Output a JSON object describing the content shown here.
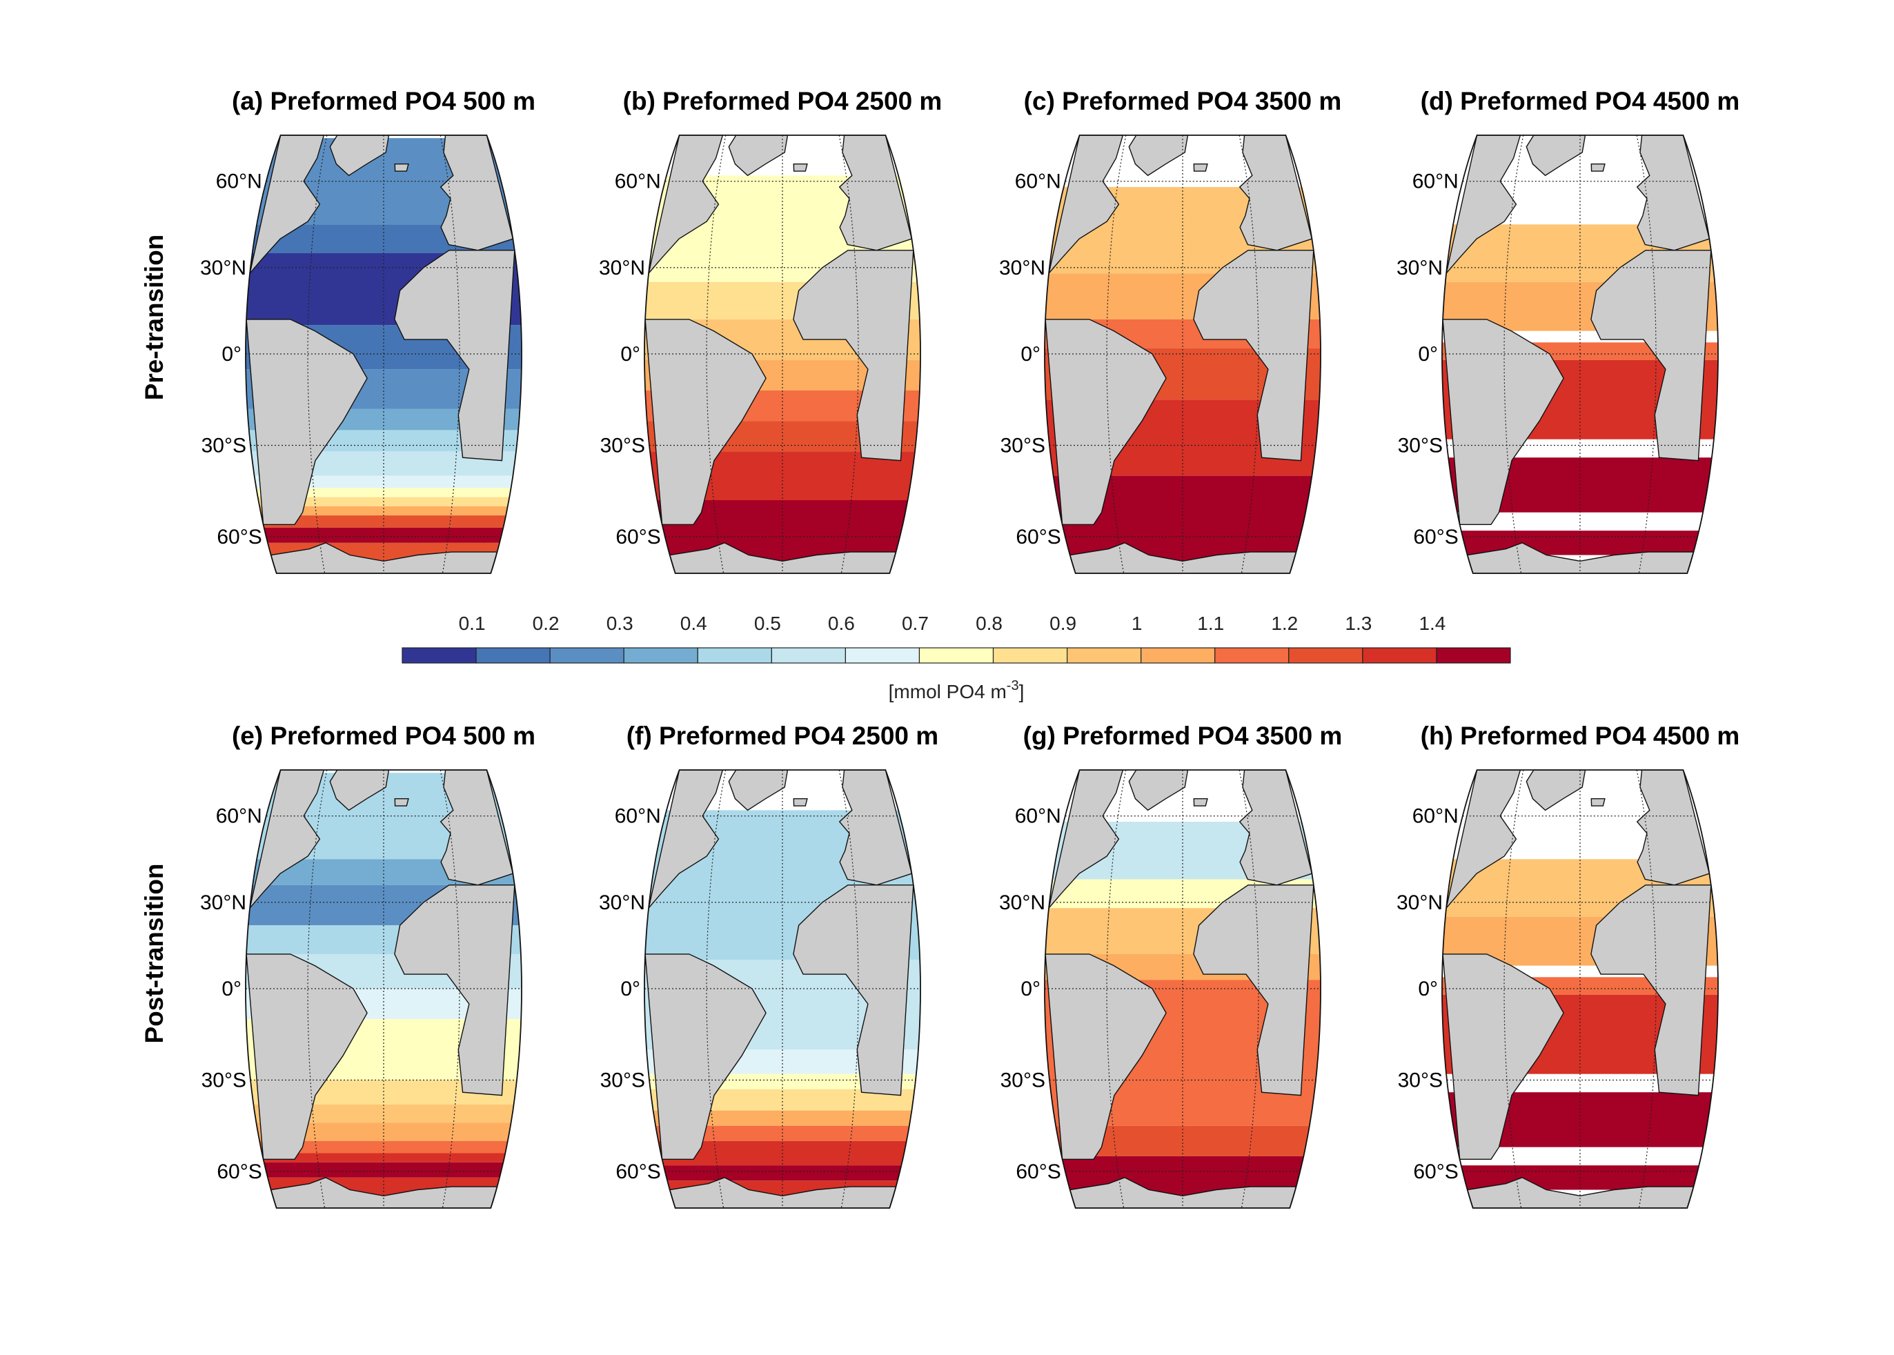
{
  "figure": {
    "row_labels": [
      "Pre-transition",
      "Post-transition"
    ],
    "lat_labels": [
      "60°N",
      "30°N",
      "0°",
      "30°S",
      "60°S"
    ],
    "land_color": "#cccccc",
    "missing_color": "#ffffff"
  },
  "colorbar": {
    "ticks": [
      "0.1",
      "0.2",
      "0.3",
      "0.4",
      "0.5",
      "0.6",
      "0.7",
      "0.8",
      "0.9",
      "1",
      "1.1",
      "1.2",
      "1.3",
      "1.4"
    ],
    "label": "[mmol PO4 m",
    "label_superscript": "-3",
    "label_close": "]",
    "bins": [
      {
        "range": "<0.1",
        "color": "#313695"
      },
      {
        "range": "0.1-0.2",
        "color": "#4575b4"
      },
      {
        "range": "0.2-0.3",
        "color": "#5b8fc3"
      },
      {
        "range": "0.3-0.4",
        "color": "#74add1"
      },
      {
        "range": "0.4-0.5",
        "color": "#abd9e9"
      },
      {
        "range": "0.5-0.6",
        "color": "#c6e6f0"
      },
      {
        "range": "0.6-0.7",
        "color": "#e0f3f8"
      },
      {
        "range": "0.7-0.8",
        "color": "#ffffbf"
      },
      {
        "range": "0.8-0.9",
        "color": "#fee090"
      },
      {
        "range": "0.9-1.0",
        "color": "#fdc574"
      },
      {
        "range": "1.0-1.1",
        "color": "#fdae61"
      },
      {
        "range": "1.1-1.2",
        "color": "#f46d43"
      },
      {
        "range": "1.2-1.3",
        "color": "#e5512f"
      },
      {
        "range": "1.3-1.4",
        "color": "#d73027"
      },
      {
        "range": ">1.4",
        "color": "#a50026"
      }
    ]
  },
  "chart_data": [
    {
      "type": "heatmap",
      "panel": "a",
      "title": "(a) Preformed PO4 500 m",
      "row": "Pre-transition",
      "depth_m": 500,
      "bands": [
        {
          "lat_from": 75,
          "lat_to": 45,
          "bin": 2
        },
        {
          "lat_from": 45,
          "lat_to": 35,
          "bin": 1
        },
        {
          "lat_from": 35,
          "lat_to": 10,
          "bin": 0
        },
        {
          "lat_from": 10,
          "lat_to": -5,
          "bin": 1
        },
        {
          "lat_from": -5,
          "lat_to": -18,
          "bin": 2
        },
        {
          "lat_from": -18,
          "lat_to": -25,
          "bin": 3
        },
        {
          "lat_from": -25,
          "lat_to": -32,
          "bin": 4
        },
        {
          "lat_from": -32,
          "lat_to": -40,
          "bin": 5
        },
        {
          "lat_from": -40,
          "lat_to": -44,
          "bin": 6
        },
        {
          "lat_from": -44,
          "lat_to": -47,
          "bin": 7
        },
        {
          "lat_from": -47,
          "lat_to": -50,
          "bin": 8
        },
        {
          "lat_from": -50,
          "lat_to": -53,
          "bin": 10
        },
        {
          "lat_from": -53,
          "lat_to": -57,
          "bin": 12
        },
        {
          "lat_from": -57,
          "lat_to": -62,
          "bin": 14
        },
        {
          "lat_from": -62,
          "lat_to": -68,
          "bin": 12
        }
      ]
    },
    {
      "type": "heatmap",
      "panel": "b",
      "title": "(b) Preformed PO4 2500 m",
      "row": "Pre-transition",
      "depth_m": 2500,
      "bands": [
        {
          "lat_from": 62,
          "lat_to": 25,
          "bin": 7
        },
        {
          "lat_from": 25,
          "lat_to": 12,
          "bin": 8
        },
        {
          "lat_from": 12,
          "lat_to": -2,
          "bin": 9
        },
        {
          "lat_from": -2,
          "lat_to": -12,
          "bin": 10
        },
        {
          "lat_from": -12,
          "lat_to": -22,
          "bin": 11
        },
        {
          "lat_from": -22,
          "lat_to": -32,
          "bin": 12
        },
        {
          "lat_from": -32,
          "lat_to": -48,
          "bin": 13
        },
        {
          "lat_from": -48,
          "lat_to": -68,
          "bin": 14
        }
      ]
    },
    {
      "type": "heatmap",
      "panel": "c",
      "title": "(c) Preformed PO4 3500 m",
      "row": "Pre-transition",
      "depth_m": 3500,
      "bands": [
        {
          "lat_from": 58,
          "lat_to": 28,
          "bin": 9
        },
        {
          "lat_from": 28,
          "lat_to": 12,
          "bin": 10
        },
        {
          "lat_from": 12,
          "lat_to": 2,
          "bin": 11
        },
        {
          "lat_from": 2,
          "lat_to": -15,
          "bin": 12
        },
        {
          "lat_from": -15,
          "lat_to": -40,
          "bin": 13
        },
        {
          "lat_from": -40,
          "lat_to": -68,
          "bin": 14
        }
      ]
    },
    {
      "type": "heatmap",
      "panel": "d",
      "title": "(d) Preformed PO4 4500 m",
      "row": "Pre-transition",
      "depth_m": 4500,
      "bands": [
        {
          "lat_from": 45,
          "lat_to": 25,
          "bin": 9
        },
        {
          "lat_from": 25,
          "lat_to": 8,
          "bin": 10
        },
        {
          "lat_from": 4,
          "lat_to": -2,
          "bin": 11
        },
        {
          "lat_from": -2,
          "lat_to": -28,
          "bin": 13
        },
        {
          "lat_from": -34,
          "lat_to": -52,
          "bin": 14
        },
        {
          "lat_from": -58,
          "lat_to": -66,
          "bin": 14
        }
      ]
    },
    {
      "type": "heatmap",
      "panel": "e",
      "title": "(e) Preformed PO4 500 m",
      "row": "Post-transition",
      "depth_m": 500,
      "bands": [
        {
          "lat_from": 75,
          "lat_to": 45,
          "bin": 4
        },
        {
          "lat_from": 45,
          "lat_to": 36,
          "bin": 3
        },
        {
          "lat_from": 36,
          "lat_to": 22,
          "bin": 2
        },
        {
          "lat_from": 22,
          "lat_to": 12,
          "bin": 4
        },
        {
          "lat_from": 12,
          "lat_to": 0,
          "bin": 5
        },
        {
          "lat_from": 0,
          "lat_to": -10,
          "bin": 6
        },
        {
          "lat_from": -10,
          "lat_to": -30,
          "bin": 7
        },
        {
          "lat_from": -30,
          "lat_to": -38,
          "bin": 8
        },
        {
          "lat_from": -38,
          "lat_to": -44,
          "bin": 9
        },
        {
          "lat_from": -44,
          "lat_to": -50,
          "bin": 10
        },
        {
          "lat_from": -50,
          "lat_to": -54,
          "bin": 11
        },
        {
          "lat_from": -54,
          "lat_to": -57,
          "bin": 13
        },
        {
          "lat_from": -57,
          "lat_to": -62,
          "bin": 14
        },
        {
          "lat_from": -62,
          "lat_to": -68,
          "bin": 13
        }
      ]
    },
    {
      "type": "heatmap",
      "panel": "f",
      "title": "(f) Preformed PO4 2500 m",
      "row": "Post-transition",
      "depth_m": 2500,
      "bands": [
        {
          "lat_from": 62,
          "lat_to": 10,
          "bin": 4
        },
        {
          "lat_from": 10,
          "lat_to": -20,
          "bin": 5
        },
        {
          "lat_from": -20,
          "lat_to": -28,
          "bin": 6
        },
        {
          "lat_from": -28,
          "lat_to": -33,
          "bin": 7
        },
        {
          "lat_from": -33,
          "lat_to": -40,
          "bin": 8
        },
        {
          "lat_from": -40,
          "lat_to": -45,
          "bin": 10
        },
        {
          "lat_from": -45,
          "lat_to": -50,
          "bin": 11
        },
        {
          "lat_from": -50,
          "lat_to": -58,
          "bin": 13
        },
        {
          "lat_from": -58,
          "lat_to": -63,
          "bin": 14
        },
        {
          "lat_from": -63,
          "lat_to": -68,
          "bin": 13
        }
      ]
    },
    {
      "type": "heatmap",
      "panel": "g",
      "title": "(g) Preformed PO4 3500 m",
      "row": "Post-transition",
      "depth_m": 3500,
      "bands": [
        {
          "lat_from": 58,
          "lat_to": 38,
          "bin": 5
        },
        {
          "lat_from": 38,
          "lat_to": 28,
          "bin": 7
        },
        {
          "lat_from": 28,
          "lat_to": 12,
          "bin": 9
        },
        {
          "lat_from": 12,
          "lat_to": 3,
          "bin": 10
        },
        {
          "lat_from": 3,
          "lat_to": -45,
          "bin": 11
        },
        {
          "lat_from": -45,
          "lat_to": -55,
          "bin": 12
        },
        {
          "lat_from": -55,
          "lat_to": -68,
          "bin": 14
        }
      ]
    },
    {
      "type": "heatmap",
      "panel": "h",
      "title": "(h) Preformed PO4 4500 m",
      "row": "Post-transition",
      "depth_m": 4500,
      "bands": [
        {
          "lat_from": 45,
          "lat_to": 25,
          "bin": 9
        },
        {
          "lat_from": 25,
          "lat_to": 8,
          "bin": 10
        },
        {
          "lat_from": 4,
          "lat_to": -2,
          "bin": 11
        },
        {
          "lat_from": -2,
          "lat_to": -28,
          "bin": 13
        },
        {
          "lat_from": -34,
          "lat_to": -52,
          "bin": 14
        },
        {
          "lat_from": -58,
          "lat_to": -66,
          "bin": 14
        }
      ]
    }
  ]
}
